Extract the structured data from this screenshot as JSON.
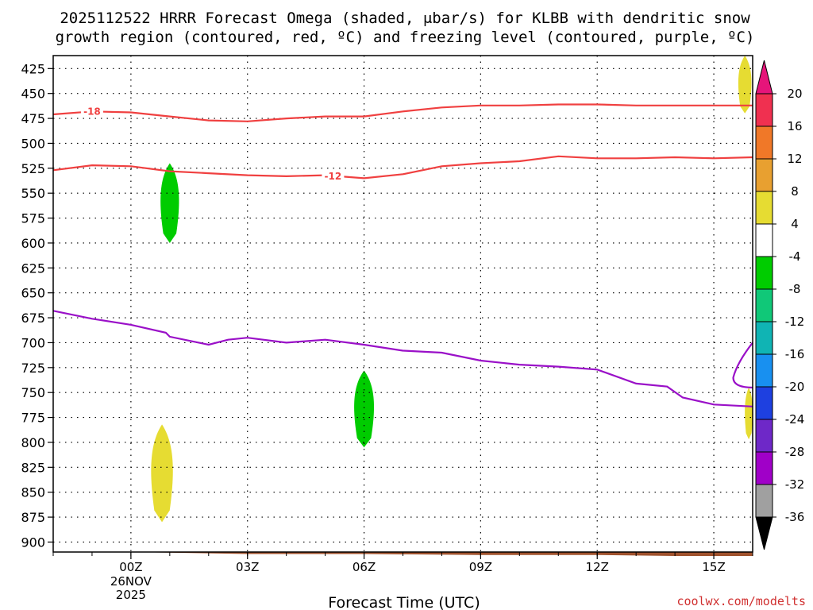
{
  "chart_data": {
    "type": "time-height contour",
    "title_line1": "2025112522 HRRR Forecast Omega (shaded, μbar/s) for KLBB with dendritic snow",
    "title_line2": "growth region (contoured, red, ºC) and freezing level (contoured, purple, ºC)",
    "xlabel": "Forecast Time (UTC)",
    "credit": "coolwx.com/modelts",
    "x_range_hours": [
      -2,
      16
    ],
    "x_ticks": [
      {
        "hour": 0,
        "label": "00Z",
        "sub1": "26NOV",
        "sub2": "2025"
      },
      {
        "hour": 3,
        "label": "03Z"
      },
      {
        "hour": 6,
        "label": "06Z"
      },
      {
        "hour": 9,
        "label": "09Z"
      },
      {
        "hour": 12,
        "label": "12Z"
      },
      {
        "hour": 15,
        "label": "15Z"
      }
    ],
    "y_range_mb": [
      412,
      910
    ],
    "y_ticks": [
      425,
      450,
      475,
      500,
      525,
      550,
      575,
      600,
      625,
      650,
      675,
      700,
      725,
      750,
      775,
      800,
      825,
      850,
      875,
      900
    ],
    "colorbar": {
      "labels": [
        "20",
        "16",
        "12",
        "8",
        "4",
        "-4",
        "-8",
        "-12",
        "-16",
        "-20",
        "-24",
        "-28",
        "-32",
        "-36"
      ],
      "colors": [
        "#f03050",
        "#f07828",
        "#e8a030",
        "#e6dc32",
        "#ffffff",
        "#00cc00",
        "#10c878",
        "#10b4b4",
        "#1890f0",
        "#1e40e0",
        "#6e28c8",
        "#a000c8",
        "#a0a0a0"
      ],
      "top_arrow_color": "#e6157a",
      "bottom_arrow_color": "#000000"
    },
    "isotherms": [
      {
        "label": "-18",
        "color": "#f04040",
        "points": [
          [
            -2,
            471
          ],
          [
            -1,
            468
          ],
          [
            0,
            469
          ],
          [
            1,
            473
          ],
          [
            2,
            477
          ],
          [
            3,
            478
          ],
          [
            4,
            475
          ],
          [
            5,
            473
          ],
          [
            6,
            473
          ],
          [
            7,
            468
          ],
          [
            8,
            464
          ],
          [
            9,
            462
          ],
          [
            10,
            462
          ],
          [
            11,
            461
          ],
          [
            12,
            461
          ],
          [
            13,
            462
          ],
          [
            14,
            462
          ],
          [
            15,
            462
          ],
          [
            16,
            462
          ]
        ],
        "label_hour": -1,
        "label_mb": 468
      },
      {
        "label": "-12",
        "color": "#f04040",
        "points": [
          [
            -2,
            527
          ],
          [
            -1,
            522
          ],
          [
            0,
            523
          ],
          [
            1,
            528
          ],
          [
            2,
            530
          ],
          [
            3,
            532
          ],
          [
            4,
            533
          ],
          [
            5,
            532
          ],
          [
            6,
            535
          ],
          [
            7,
            531
          ],
          [
            8,
            523
          ],
          [
            9,
            520
          ],
          [
            10,
            518
          ],
          [
            11,
            513
          ],
          [
            12,
            515
          ],
          [
            13,
            515
          ],
          [
            14,
            514
          ],
          [
            15,
            515
          ],
          [
            16,
            514
          ]
        ],
        "label_hour": 5.2,
        "label_mb": 533
      }
    ],
    "freezing_level": {
      "color": "#9a10c8",
      "points": [
        [
          -2,
          668
        ],
        [
          -1,
          676
        ],
        [
          0,
          682
        ],
        [
          0.9,
          690
        ],
        [
          1,
          694
        ],
        [
          2,
          702
        ],
        [
          2.5,
          697
        ],
        [
          3,
          695
        ],
        [
          4,
          700
        ],
        [
          5,
          697
        ],
        [
          6,
          702
        ],
        [
          7,
          708
        ],
        [
          8,
          710
        ],
        [
          9,
          718
        ],
        [
          10,
          722
        ],
        [
          11,
          724
        ],
        [
          12,
          727
        ],
        [
          13,
          741
        ],
        [
          13.8,
          744
        ],
        [
          14.2,
          755
        ],
        [
          15,
          762
        ],
        [
          16,
          764
        ]
      ],
      "right_edge_points": [
        [
          16,
          700
        ],
        [
          15.6,
          720
        ],
        [
          15.5,
          735
        ],
        [
          16,
          745
        ]
      ]
    },
    "omega_shading": [
      {
        "value_range": [
          -8,
          -4
        ],
        "color": "#00cc00",
        "center_hour": 1.0,
        "top_mb": 520,
        "bottom_mb": 600,
        "half_width_hours": 0.28
      },
      {
        "value_range": [
          -8,
          -4
        ],
        "color": "#00cc00",
        "center_hour": 6.0,
        "top_mb": 728,
        "bottom_mb": 805,
        "half_width_hours": 0.3
      },
      {
        "value_range": [
          4,
          8
        ],
        "color": "#e6dc32",
        "center_hour": 0.8,
        "top_mb": 782,
        "bottom_mb": 880,
        "half_width_hours": 0.33
      },
      {
        "value_range": [
          4,
          8
        ],
        "color": "#e6dc32",
        "center_hour": 15.8,
        "top_mb": 412,
        "bottom_mb": 470,
        "half_width_hours": 0.2
      },
      {
        "value_range": [
          4,
          8
        ],
        "color": "#e6dc32",
        "center_hour": 15.9,
        "top_mb": 745,
        "bottom_mb": 797,
        "half_width_hours": 0.12
      }
    ],
    "terrain_color": "#a0522d",
    "terrain_top_mb": [
      [
        -2,
        910
      ],
      [
        0,
        910
      ],
      [
        3,
        912
      ],
      [
        6,
        912
      ],
      [
        9,
        913
      ],
      [
        12,
        913
      ],
      [
        14,
        914
      ],
      [
        16,
        914
      ]
    ]
  }
}
